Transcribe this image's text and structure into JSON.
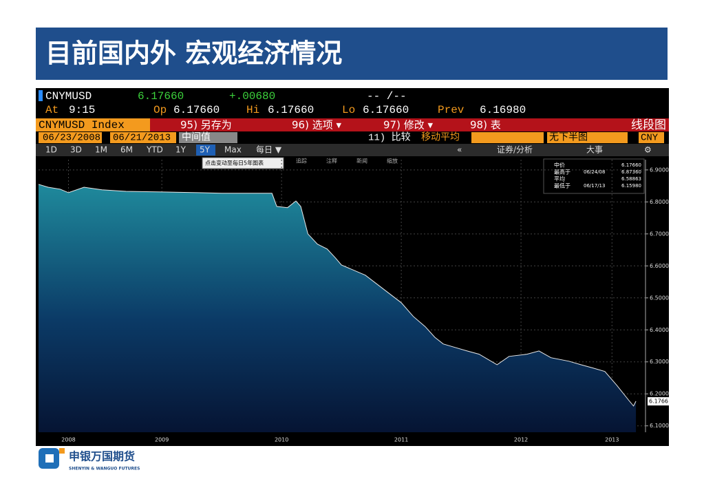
{
  "header": {
    "title": "目前国内外 宏观经济情况"
  },
  "terminal": {
    "ticker": "CNYMUSD",
    "last": "6.17660",
    "change": "+.00680",
    "bidask": "-- /--",
    "quote": [
      {
        "label": "At",
        "value": "9:15"
      },
      {
        "label": "Op",
        "value": "6.17660"
      },
      {
        "label": "Hi",
        "value": "6.17660"
      },
      {
        "label": "Lo",
        "value": "6.17660"
      },
      {
        "label": "Prev",
        "value": "6.16980"
      }
    ],
    "index": "CNYMUSD Index",
    "menu": [
      "95) 另存为",
      "96) 选项 ▾",
      "97) 修改 ▾",
      "98) 表"
    ],
    "chart_type": "线段图",
    "start_date": "06/23/2008",
    "end_date": "06/21/2013",
    "field": "中间值",
    "compare": "11) 比较",
    "moving_avg": "移动平均",
    "lower_chart": "无下半图",
    "currency": "CNY",
    "ranges": [
      "1D",
      "3D",
      "1M",
      "6M",
      "YTD",
      "1Y",
      "5Y",
      "Max"
    ],
    "frequency": "每日 ▼",
    "collapse": "«",
    "analysis": "证券/分析",
    "events": "大事",
    "settings": "⚙",
    "tooltip": "点击变动至每日5年图表",
    "tools": [
      "追踪",
      "注释",
      "新闻",
      "缩放"
    ]
  },
  "chart_data": {
    "type": "area",
    "x": [
      2008.47,
      2008.55,
      2008.65,
      2008.72,
      2008.85,
      2009.0,
      2009.2,
      2009.5,
      2009.8,
      2010.0,
      2010.3,
      2010.42,
      2010.46,
      2010.55,
      2010.62,
      2010.66,
      2010.72,
      2010.8,
      2010.88,
      2010.95,
      2011.0,
      2011.2,
      2011.35,
      2011.5,
      2011.6,
      2011.7,
      2011.78,
      2011.85,
      2011.95,
      2012.05,
      2012.15,
      2012.3,
      2012.4,
      2012.55,
      2012.65,
      2012.75,
      2012.9,
      2013.0,
      2013.1,
      2013.2,
      2013.3,
      2013.4,
      2013.44,
      2013.46
    ],
    "series": [
      {
        "color": "#1f8a9c",
        "values": [
          6.855,
          6.846,
          6.84,
          6.829,
          6.846,
          6.838,
          6.833,
          6.831,
          6.829,
          6.827,
          6.827,
          6.827,
          6.786,
          6.782,
          6.803,
          6.786,
          6.7,
          6.668,
          6.653,
          6.625,
          6.603,
          6.571,
          6.528,
          6.485,
          6.442,
          6.41,
          6.377,
          6.356,
          6.345,
          6.334,
          6.324,
          6.291,
          6.317,
          6.324,
          6.334,
          6.313,
          6.302,
          6.291,
          6.281,
          6.27,
          6.227,
          6.18,
          6.162,
          6.177
        ]
      }
    ],
    "xlim": [
      2008.47,
      2013.54
    ],
    "ylim": [
      6.08,
      6.932
    ],
    "xticks": [
      {
        "value": 2008.72,
        "label": "2008"
      },
      {
        "value": 2009.5,
        "label": "2009"
      },
      {
        "value": 2010.5,
        "label": "2010"
      },
      {
        "value": 2011.5,
        "label": "2011"
      },
      {
        "value": 2012.5,
        "label": "2012"
      },
      {
        "value": 2013.26,
        "label": "2013"
      }
    ],
    "yticks": [
      {
        "value": 6.9,
        "label": "6.9000"
      },
      {
        "value": 6.8,
        "label": "6.8000"
      },
      {
        "value": 6.7,
        "label": "6.7000"
      },
      {
        "value": 6.6,
        "label": "6.6000"
      },
      {
        "value": 6.5,
        "label": "6.5000"
      },
      {
        "value": 6.4,
        "label": "6.4000"
      },
      {
        "value": 6.3,
        "label": "6.3000"
      },
      {
        "value": 6.2,
        "label": "6.2000"
      },
      {
        "value": 6.1,
        "label": "6.1000"
      }
    ],
    "grid": true,
    "last_label": {
      "value": 6.1766,
      "label": "6.1766"
    },
    "legend": [
      {
        "label": "中价",
        "value": "6.17660"
      },
      {
        "label": "最高于",
        "date": "06/24/08",
        "value": "6.87360"
      },
      {
        "label": "平均",
        "value": "6.58863"
      },
      {
        "label": "最低于",
        "date": "06/17/13",
        "value": "6.15980"
      }
    ]
  },
  "footer": {
    "company": "申银万国期货",
    "company_en": "SHENYIN & WANGUO FUTURES"
  }
}
